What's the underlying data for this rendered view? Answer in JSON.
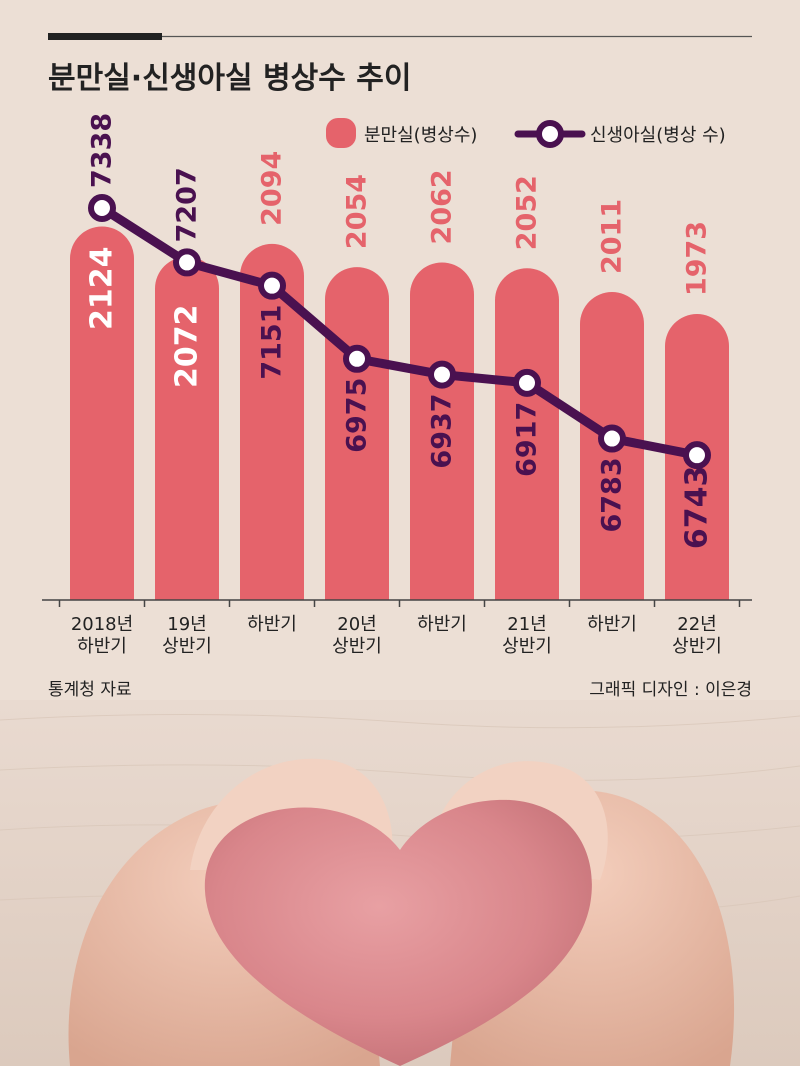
{
  "title": "분만실·신생아실 병상수 추이",
  "source": "통계청 자료",
  "credit": "그래픽 디자인 : 이은경",
  "colors": {
    "background": "#ecdfd5",
    "bar": "#e5636b",
    "bar_label_inside": "#ffffff",
    "bar_label_above": "#e5636b",
    "line": "#4a1150",
    "marker_fill": "#ffffff",
    "accent": "#222222"
  },
  "legend": {
    "bar_label": "분만실(병상수)",
    "line_label": "신생아실(병상 수)",
    "bar_icon": "rounded-bar-icon",
    "line_icon": "line-with-circle-marker-icon"
  },
  "chart_data": {
    "type": "bar",
    "title": "분만실·신생아실 병상수 추이",
    "categories": [
      [
        "2018년",
        "하반기"
      ],
      [
        "19년",
        "상반기"
      ],
      [
        "하반기"
      ],
      [
        "20년",
        "상반기"
      ],
      [
        "하반기"
      ],
      [
        "21년",
        "상반기"
      ],
      [
        "하반기"
      ],
      [
        "22년",
        "상반기"
      ]
    ],
    "series": [
      {
        "name": "분만실(병상수)",
        "type": "bar",
        "values": [
          2124,
          2072,
          2094,
          2054,
          2062,
          2052,
          2011,
          1973
        ]
      },
      {
        "name": "신생아실(병상 수)",
        "type": "line",
        "values": [
          7338,
          7207,
          7151,
          6975,
          6937,
          6917,
          6783,
          6743
        ]
      }
    ],
    "bar_labels_inside": [
      true,
      true,
      false,
      false,
      false,
      false,
      false,
      false
    ],
    "line_labels_inside_bar": [
      false,
      false,
      true,
      true,
      true,
      true,
      true,
      true
    ],
    "grid": false,
    "legend_position": "top-right"
  },
  "image": {
    "description_icon": "hands-holding-heart-photo"
  }
}
